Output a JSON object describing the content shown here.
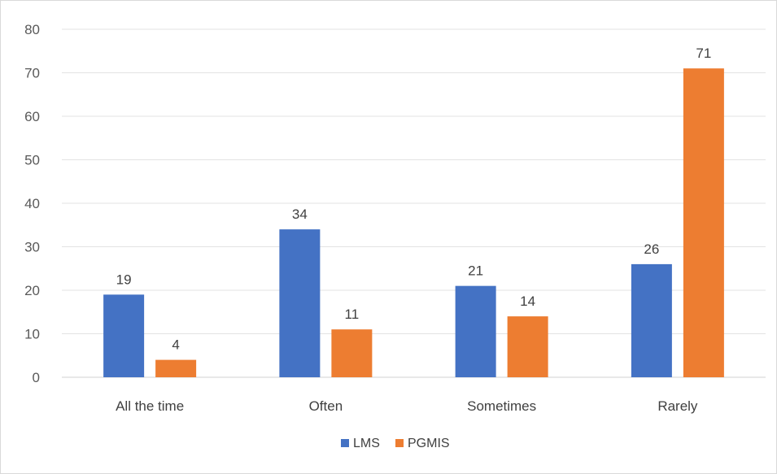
{
  "chart_data": {
    "type": "bar",
    "categories": [
      "All the time",
      "Often",
      "Sometimes",
      "Rarely"
    ],
    "series": [
      {
        "name": "LMS",
        "color": "#4472C4",
        "values": [
          19,
          34,
          21,
          26
        ]
      },
      {
        "name": "PGMIS",
        "color": "#ED7D31",
        "values": [
          4,
          11,
          14,
          71
        ]
      }
    ],
    "ylim": [
      0,
      80
    ],
    "yticks": [
      0,
      10,
      20,
      30,
      40,
      50,
      60,
      70,
      80
    ],
    "grid": true,
    "legend_position": "bottom",
    "data_labels": true
  }
}
